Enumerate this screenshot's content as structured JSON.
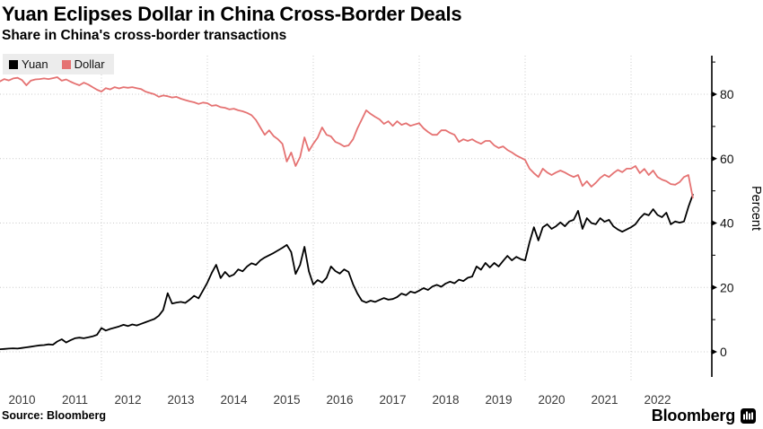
{
  "header": {
    "title": "Yuan Eclipses Dollar in China Cross-Border Deals",
    "subtitle": "Share in China's cross-border transactions"
  },
  "legend": {
    "items": [
      {
        "label": "Yuan",
        "color": "#000000"
      },
      {
        "label": "Dollar",
        "color": "#e57272"
      }
    ]
  },
  "footer": {
    "source": "Source: Bloomberg",
    "brand": "Bloomberg"
  },
  "chart_data": {
    "type": "line",
    "title": "Yuan Eclipses Dollar in China Cross-Border Deals",
    "subtitle": "Share in China's cross-border transactions",
    "xlabel": "",
    "ylabel": "Percent",
    "ylim": [
      -8,
      92
    ],
    "y_ticks": [
      0,
      20,
      40,
      60,
      80
    ],
    "y_minor_ticks": [
      10,
      30,
      50,
      70,
      90
    ],
    "grid": "dotted",
    "legend_position": "top-left",
    "x_labels": [
      "2010",
      "2011",
      "2012",
      "2013",
      "2014",
      "2015",
      "2016",
      "2017",
      "2018",
      "2019",
      "2020",
      "2021",
      "2022"
    ],
    "grid_x_years": [
      2012,
      2014,
      2016,
      2018,
      2020,
      2022
    ],
    "x_range": {
      "start_year": 2010,
      "end_year_fraction": 2023.25,
      "frequency": "monthly"
    },
    "series": [
      {
        "name": "Yuan",
        "color": "#000000",
        "start": "2010-01",
        "freq": "monthly",
        "values": [
          0.6,
          0.8,
          0.9,
          1.0,
          1.1,
          1.0,
          1.2,
          1.4,
          1.6,
          1.8,
          2.0,
          2.1,
          2.3,
          2.2,
          3.2,
          3.9,
          2.9,
          3.6,
          4.2,
          4.4,
          4.2,
          4.5,
          4.8,
          5.3,
          7.4,
          6.6,
          7.1,
          7.5,
          7.9,
          8.4,
          8.0,
          8.5,
          8.2,
          8.7,
          9.2,
          9.7,
          10.2,
          11.2,
          13.0,
          18.2,
          15.0,
          15.3,
          15.5,
          15.2,
          16.2,
          17.4,
          16.6,
          19.0,
          21.5,
          24.5,
          27.0,
          22.9,
          24.8,
          23.4,
          24.0,
          25.6,
          25.0,
          26.5,
          27.5,
          27.0,
          28.4,
          29.3,
          30.0,
          30.7,
          31.5,
          32.3,
          33.2,
          31.0,
          24.2,
          27.0,
          32.6,
          25.0,
          20.9,
          22.3,
          21.5,
          23.0,
          26.5,
          25.1,
          24.3,
          25.6,
          24.8,
          21.0,
          18.1,
          15.9,
          15.3,
          15.9,
          15.5,
          16.1,
          16.7,
          16.2,
          16.4,
          17.0,
          18.1,
          17.6,
          18.7,
          18.3,
          19.0,
          19.8,
          19.2,
          20.3,
          20.8,
          20.2,
          21.2,
          21.8,
          21.3,
          22.4,
          22.0,
          23.0,
          23.4,
          26.5,
          25.5,
          27.6,
          26.2,
          27.6,
          26.5,
          28.2,
          29.8,
          28.4,
          29.5,
          28.8,
          28.4,
          34.0,
          38.7,
          34.6,
          38.7,
          39.6,
          38.2,
          39.0,
          40.2,
          39.0,
          40.5,
          41.0,
          43.8,
          38.2,
          41.5,
          40.0,
          39.6,
          41.5,
          40.4,
          41.0,
          39.0,
          38.0,
          37.3,
          38.0,
          38.7,
          39.6,
          41.5,
          42.9,
          42.4,
          44.3,
          42.5,
          41.8,
          43.2,
          39.6,
          40.5,
          40.1,
          40.5,
          45.0,
          48.8
        ]
      },
      {
        "name": "Dollar",
        "color": "#e57272",
        "start": "2010-01",
        "freq": "monthly",
        "values": [
          83.4,
          84.0,
          84.7,
          84.3,
          84.9,
          85.1,
          84.4,
          82.8,
          84.2,
          84.6,
          84.7,
          84.9,
          84.7,
          85.0,
          85.3,
          84.2,
          84.6,
          83.9,
          83.3,
          82.8,
          83.6,
          83.0,
          82.2,
          81.4,
          80.8,
          81.9,
          81.5,
          82.2,
          81.8,
          82.2,
          82.0,
          82.2,
          81.9,
          81.6,
          80.8,
          80.4,
          80.0,
          79.2,
          79.6,
          79.4,
          79.0,
          79.2,
          78.6,
          78.2,
          77.8,
          77.5,
          77.0,
          77.4,
          77.2,
          76.4,
          76.6,
          76.0,
          75.8,
          75.3,
          75.5,
          75.0,
          74.7,
          74.2,
          73.5,
          72.0,
          69.7,
          67.4,
          68.8,
          67.0,
          66.0,
          64.6,
          59.1,
          61.9,
          57.7,
          60.5,
          66.6,
          62.4,
          64.6,
          66.5,
          69.7,
          67.4,
          66.9,
          65.2,
          64.6,
          63.8,
          64.1,
          66.0,
          69.4,
          72.2,
          75.0,
          73.9,
          73.0,
          72.2,
          70.8,
          71.6,
          70.2,
          71.6,
          70.5,
          71.0,
          70.2,
          70.6,
          71.0,
          69.4,
          68.3,
          67.4,
          67.4,
          68.8,
          68.8,
          68.0,
          67.4,
          65.2,
          66.0,
          65.5,
          66.0,
          65.2,
          64.6,
          65.5,
          65.5,
          64.1,
          63.3,
          63.8,
          62.7,
          61.9,
          61.0,
          60.3,
          59.6,
          56.9,
          55.5,
          54.3,
          56.9,
          55.7,
          54.9,
          55.7,
          56.3,
          55.7,
          54.9,
          54.3,
          54.9,
          51.5,
          53.0,
          51.3,
          52.5,
          54.0,
          55.0,
          54.3,
          55.5,
          56.5,
          55.8,
          56.9,
          56.9,
          57.7,
          55.5,
          56.8,
          54.9,
          56.3,
          54.3,
          53.5,
          53.0,
          52.1,
          51.9,
          52.7,
          54.3,
          54.9,
          47.9
        ]
      }
    ]
  }
}
